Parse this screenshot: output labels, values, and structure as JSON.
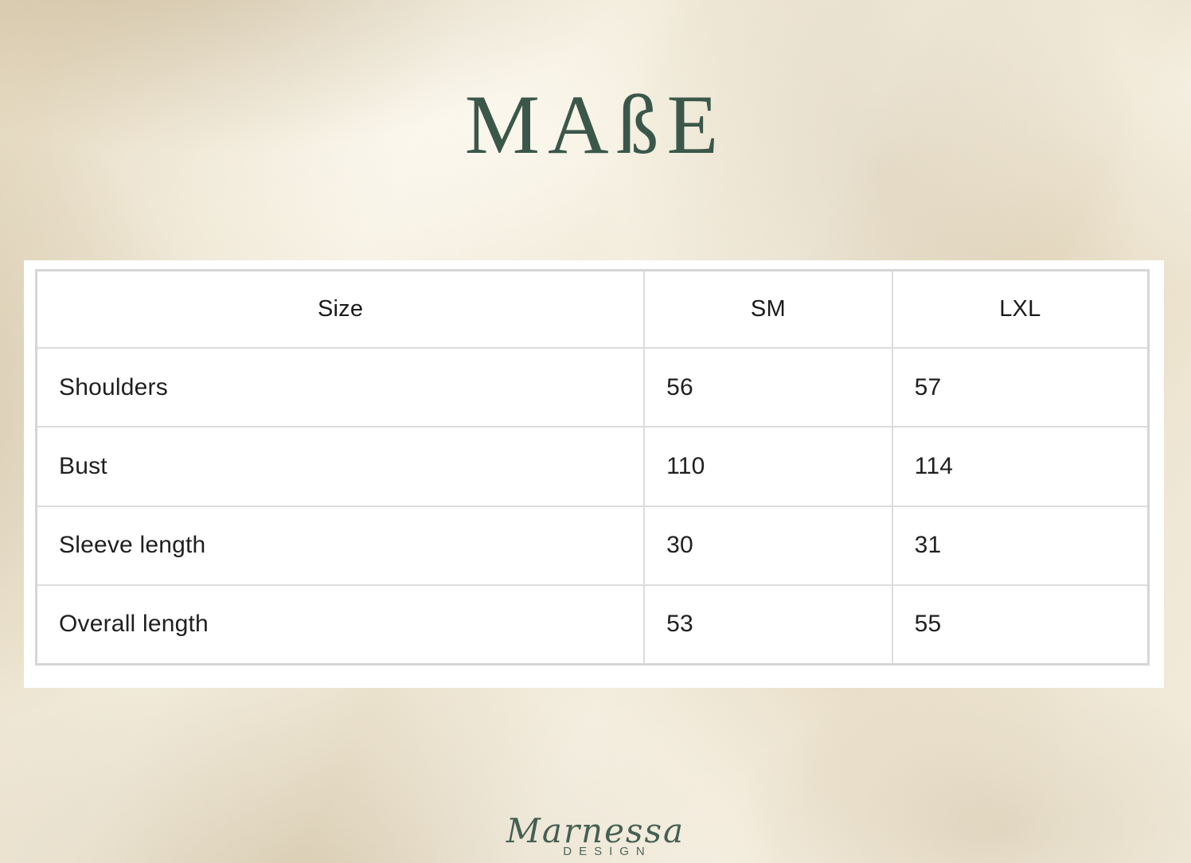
{
  "title": "MAßE",
  "table": {
    "headers": [
      "Size",
      "SM",
      "LXL"
    ],
    "rows": [
      {
        "label": "Shoulders",
        "sm": "56",
        "lxl": "57"
      },
      {
        "label": "Bust",
        "sm": "110",
        "lxl": "114"
      },
      {
        "label": "Sleeve length",
        "sm": "30",
        "lxl": "31"
      },
      {
        "label": "Overall length",
        "sm": "53",
        "lxl": "55"
      }
    ]
  },
  "footer": {
    "brand": "Marnessa",
    "sub": "DESIGN"
  },
  "colors": {
    "accent_green": "#3a574a",
    "logo_green": "#456052",
    "table_border": "#d6d6d6",
    "table_text": "#1f1f1f",
    "frame_background": "#ffffff",
    "satin_base": "#eadfc8"
  }
}
